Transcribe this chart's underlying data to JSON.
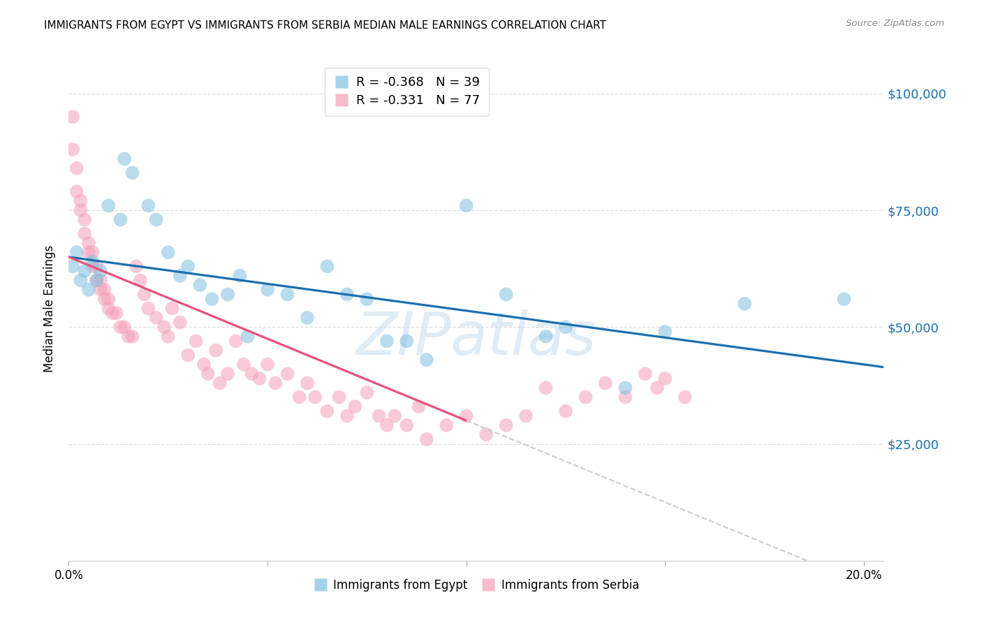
{
  "title": "IMMIGRANTS FROM EGYPT VS IMMIGRANTS FROM SERBIA MEDIAN MALE EARNINGS CORRELATION CHART",
  "source": "Source: ZipAtlas.com",
  "ylabel": "Median Male Earnings",
  "y_ticks": [
    0,
    25000,
    50000,
    75000,
    100000
  ],
  "y_tick_labels": [
    "",
    "$25,000",
    "$50,000",
    "$75,000",
    "$100,000"
  ],
  "xlim": [
    0.0,
    0.205
  ],
  "ylim": [
    0,
    108000
  ],
  "egypt_R": -0.368,
  "egypt_N": 39,
  "serbia_R": -0.331,
  "serbia_N": 77,
  "egypt_color": "#7fbfdf",
  "serbia_color": "#f4a0b8",
  "egypt_line_color": "#1a6faf",
  "serbia_line_color": "#e8517a",
  "watermark": "ZIPatlas",
  "watermark_color": "#c5ddf0",
  "background_color": "#ffffff",
  "egypt_scatter_x": [
    0.001,
    0.002,
    0.003,
    0.004,
    0.005,
    0.006,
    0.007,
    0.008,
    0.01,
    0.013,
    0.014,
    0.016,
    0.02,
    0.022,
    0.025,
    0.028,
    0.03,
    0.033,
    0.036,
    0.04,
    0.043,
    0.045,
    0.05,
    0.055,
    0.06,
    0.065,
    0.07,
    0.075,
    0.08,
    0.085,
    0.09,
    0.1,
    0.11,
    0.125,
    0.14,
    0.17,
    0.195,
    0.15,
    0.12
  ],
  "egypt_scatter_y": [
    63000,
    66000,
    60000,
    62000,
    58000,
    64000,
    60000,
    62000,
    76000,
    73000,
    86000,
    83000,
    76000,
    73000,
    66000,
    61000,
    63000,
    59000,
    56000,
    57000,
    61000,
    48000,
    58000,
    57000,
    52000,
    63000,
    57000,
    56000,
    47000,
    47000,
    43000,
    76000,
    57000,
    50000,
    37000,
    55000,
    56000,
    49000,
    48000
  ],
  "serbia_scatter_x": [
    0.001,
    0.001,
    0.002,
    0.002,
    0.003,
    0.003,
    0.004,
    0.004,
    0.005,
    0.005,
    0.006,
    0.006,
    0.007,
    0.007,
    0.008,
    0.008,
    0.009,
    0.009,
    0.01,
    0.01,
    0.011,
    0.012,
    0.013,
    0.014,
    0.015,
    0.016,
    0.017,
    0.018,
    0.019,
    0.02,
    0.022,
    0.024,
    0.025,
    0.026,
    0.028,
    0.03,
    0.032,
    0.034,
    0.035,
    0.037,
    0.038,
    0.04,
    0.042,
    0.044,
    0.046,
    0.048,
    0.05,
    0.052,
    0.055,
    0.058,
    0.06,
    0.062,
    0.065,
    0.068,
    0.07,
    0.072,
    0.075,
    0.078,
    0.08,
    0.082,
    0.085,
    0.088,
    0.09,
    0.095,
    0.1,
    0.105,
    0.11,
    0.115,
    0.12,
    0.125,
    0.13,
    0.135,
    0.14,
    0.145,
    0.148,
    0.15,
    0.155
  ],
  "serbia_scatter_y": [
    95000,
    88000,
    84000,
    79000,
    77000,
    75000,
    73000,
    70000,
    68000,
    66000,
    66000,
    63000,
    63000,
    60000,
    60000,
    58000,
    58000,
    56000,
    56000,
    54000,
    53000,
    53000,
    50000,
    50000,
    48000,
    48000,
    63000,
    60000,
    57000,
    54000,
    52000,
    50000,
    48000,
    54000,
    51000,
    44000,
    47000,
    42000,
    40000,
    45000,
    38000,
    40000,
    47000,
    42000,
    40000,
    39000,
    42000,
    38000,
    40000,
    35000,
    38000,
    35000,
    32000,
    35000,
    31000,
    33000,
    36000,
    31000,
    29000,
    31000,
    29000,
    33000,
    26000,
    29000,
    31000,
    27000,
    29000,
    31000,
    37000,
    32000,
    35000,
    38000,
    35000,
    40000,
    37000,
    39000,
    35000
  ],
  "serbia_line_x_end": 0.1,
  "serbia_line_intercept": 65000,
  "serbia_line_slope": -350000,
  "egypt_line_intercept": 65000,
  "egypt_line_slope": -115000
}
